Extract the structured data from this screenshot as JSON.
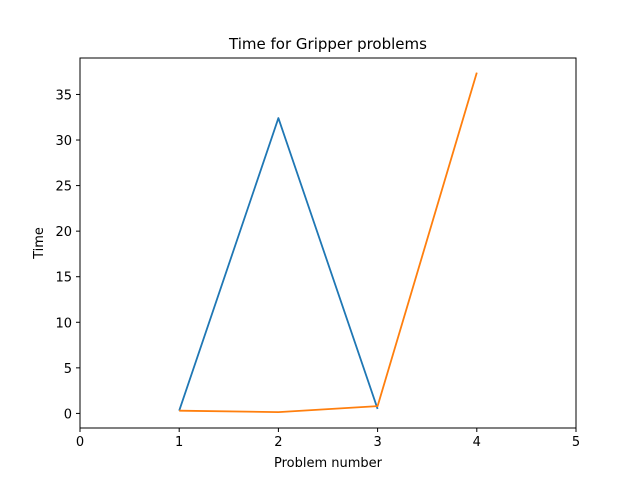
{
  "chart_data": {
    "type": "line",
    "title": "Time for Gripper problems",
    "xlabel": "Problem number",
    "ylabel": "Time",
    "xlim": [
      0,
      5
    ],
    "ylim": [
      -1.6,
      39.0
    ],
    "xticks": [
      "0",
      "1",
      "2",
      "3",
      "4",
      "5"
    ],
    "yticks": [
      "0",
      "5",
      "10",
      "15",
      "20",
      "25",
      "30",
      "35"
    ],
    "grid": false,
    "series": [
      {
        "color": "#1f77b4",
        "x": [
          1,
          2,
          3
        ],
        "y": [
          0.3,
          32.4,
          0.5
        ]
      },
      {
        "color": "#ff7f0e",
        "x": [
          1,
          2,
          3,
          4
        ],
        "y": [
          0.3,
          0.15,
          0.8,
          37.4
        ]
      }
    ]
  }
}
